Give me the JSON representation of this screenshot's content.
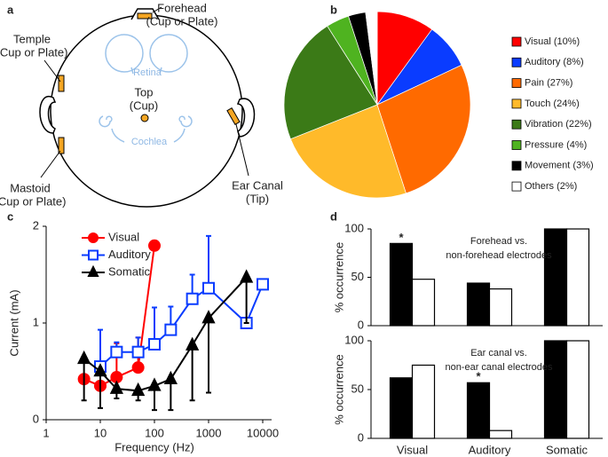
{
  "panel_labels": [
    "a",
    "b",
    "c",
    "d"
  ],
  "diagram": {
    "labels": [
      {
        "lines": [
          "Forehead",
          "(Cup or Plate)"
        ]
      },
      {
        "lines": [
          "Temple",
          "(Cup or Plate)"
        ]
      },
      {
        "lines": [
          "Retina"
        ]
      },
      {
        "lines": [
          "Top",
          "(Cup)"
        ]
      },
      {
        "lines": [
          "Cochlea"
        ]
      },
      {
        "lines": [
          "Mastoid",
          "(Cup or Plate)"
        ]
      },
      {
        "lines": [
          "Ear Canal",
          "(Tip)"
        ]
      }
    ]
  },
  "chart_data": [
    {
      "type": "pie",
      "categories": [
        "Visual (10%)",
        "Auditory (8%)",
        "Pain (27%)",
        "Touch (24%)",
        "Vibration (22%)",
        "Pressure (4%)",
        "Movement (3%)",
        "Others (2%)"
      ],
      "values": [
        10,
        8,
        27,
        24,
        22,
        4,
        3,
        2
      ],
      "colors": [
        "#ff0000",
        "#0a3cff",
        "#ff6a00",
        "#ffba2a",
        "#3b7a17",
        "#4fb320",
        "#000000",
        "#ffffff"
      ]
    },
    {
      "type": "line",
      "xlabel": "Frequency (Hz)",
      "ylabel": "Current (mA)",
      "xscale": "log",
      "xlim": [
        1,
        10000
      ],
      "xticks": [
        1,
        10,
        100,
        1000,
        10000
      ],
      "ylim": [
        0,
        2
      ],
      "yticks": [
        0,
        1,
        2
      ],
      "series": [
        {
          "name": "Visual",
          "color": "#ff0000",
          "marker": "circle",
          "hollow": false,
          "error_direction": "up",
          "x": [
            5,
            10,
            20,
            50,
            100
          ],
          "values": [
            0.42,
            0.35,
            0.44,
            0.54,
            1.8
          ],
          "errors": [
            0,
            0,
            0.35,
            0.31,
            0
          ]
        },
        {
          "name": "Auditory",
          "color": "#0a3cff",
          "marker": "square",
          "hollow": true,
          "error_direction": "up",
          "x": [
            10,
            20,
            50,
            100,
            200,
            500,
            1000,
            5000,
            10000
          ],
          "values": [
            0.55,
            0.7,
            0.7,
            0.78,
            0.93,
            1.25,
            1.36,
            1.0,
            1.4
          ],
          "errors": [
            0.38,
            0.1,
            0.15,
            0.38,
            0.24,
            0.25,
            0.54,
            0,
            0
          ]
        },
        {
          "name": "Somatic",
          "color": "#000000",
          "marker": "triangle",
          "hollow": false,
          "error_direction": "down",
          "x": [
            5,
            10,
            20,
            50,
            100,
            200,
            500,
            1000,
            5000
          ],
          "values": [
            0.63,
            0.5,
            0.32,
            0.3,
            0.35,
            0.42,
            0.77,
            1.05,
            1.47
          ],
          "errors": [
            0.43,
            0.38,
            0.1,
            0.1,
            0.25,
            0.32,
            0.57,
            0.77,
            0.47
          ]
        }
      ]
    },
    {
      "type": "bar",
      "ylabel": "% occurrence",
      "ylim": [
        0,
        100
      ],
      "yticks": [
        0,
        50,
        100
      ],
      "annotation": [
        "Forehead vs.",
        "non-forehead electrodes"
      ],
      "marks": [
        {
          "text": "*",
          "category_index": 0
        }
      ],
      "series": [
        {
          "color": "#000000",
          "values": [
            85,
            44,
            100
          ]
        },
        {
          "color": "#ffffff",
          "values": [
            48,
            38,
            100
          ]
        }
      ]
    },
    {
      "type": "bar",
      "ylabel": "% occurrence",
      "ylim": [
        0,
        100
      ],
      "yticks": [
        0,
        50,
        100
      ],
      "categories": [
        "Visual",
        "Auditory",
        "Somatic"
      ],
      "annotation": [
        "Ear canal vs.",
        "non-ear canal electrodes"
      ],
      "marks": [
        {
          "text": "*",
          "category_index": 1
        }
      ],
      "series": [
        {
          "color": "#000000",
          "values": [
            62,
            57,
            100
          ]
        },
        {
          "color": "#ffffff",
          "values": [
            75,
            8,
            100
          ]
        }
      ]
    }
  ]
}
